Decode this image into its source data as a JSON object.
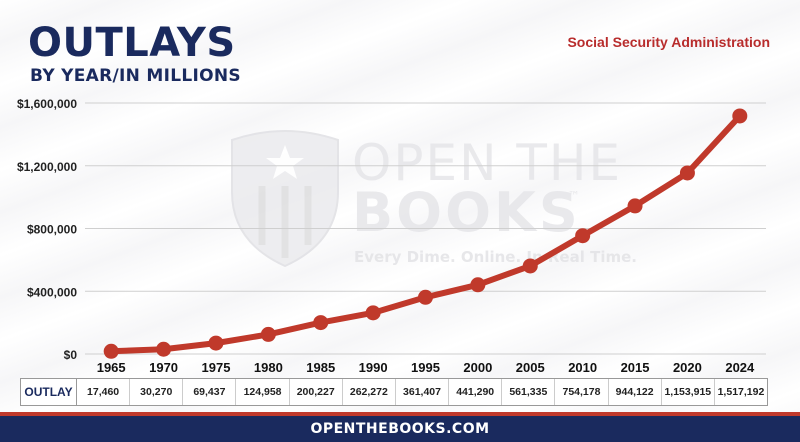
{
  "header": {
    "title": "OUTLAYS",
    "subtitle": "BY YEAR/IN MILLIONS",
    "agency": "Social Security Administration"
  },
  "watermark": {
    "line1": "OPEN THE",
    "line2": "BOOKS",
    "tm": "™",
    "tagline": "Every Dime. Online. In Real Time."
  },
  "colors": {
    "accent_red": "#c0392b",
    "navy": "#1a2a5e",
    "grid": "#cfcfcf",
    "watermark": "#e6e6e9"
  },
  "table": {
    "row_label": "OUTLAY",
    "values": [
      "17,460",
      "30,270",
      "69,437",
      "124,958",
      "200,227",
      "262,272",
      "361,407",
      "441,290",
      "561,335",
      "754,178",
      "944,122",
      "1,153,915",
      "1,517,192"
    ]
  },
  "footer": {
    "text": "OPENTHEBOOKS.COM"
  },
  "chart_data": {
    "type": "line",
    "categories": [
      "1965",
      "1970",
      "1975",
      "1980",
      "1985",
      "1990",
      "1995",
      "2000",
      "2005",
      "2010",
      "2015",
      "2020",
      "2024"
    ],
    "series": [
      {
        "values": [
          17460,
          30270,
          69437,
          124958,
          200227,
          262272,
          361407,
          441290,
          561335,
          754178,
          944122,
          1153915,
          1517192
        ]
      }
    ],
    "yticks": [
      "$0",
      "$400,000",
      "$800,000",
      "$1,200,000",
      "$1,600,000"
    ],
    "ytick_values": [
      0,
      400000,
      800000,
      1200000,
      1600000
    ],
    "ylim": [
      0,
      1600000
    ],
    "grid": true,
    "line_color": "#c0392b",
    "title": "",
    "xlabel": "",
    "ylabel": ""
  }
}
